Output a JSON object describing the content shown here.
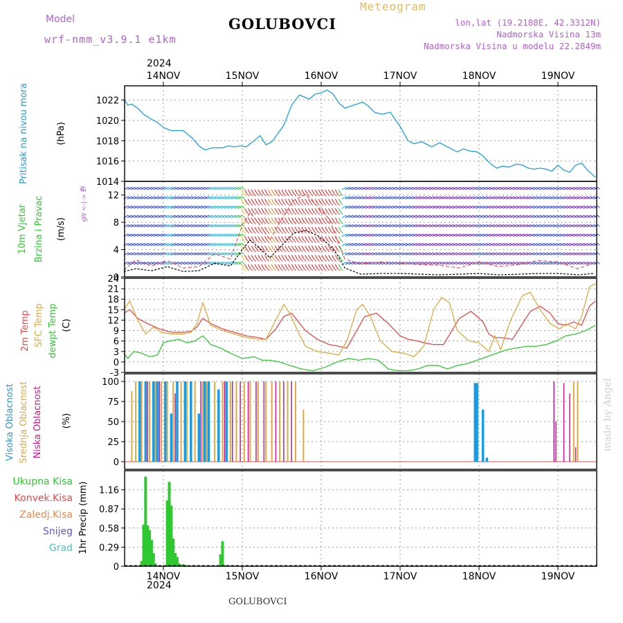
{
  "header": {
    "model_label": "Model",
    "model_name": "wrf-nmm_v3.9.1 e1km",
    "station": "GOLUBOVCI",
    "meteogram": "Meteogram",
    "lonlat": "lon,lat (19.2188E, 42.3312N)",
    "altitude": "Nadmorska Visina 13m",
    "model_altitude": "Nadmorska Visina u modelu 22.2849m",
    "year": "2024",
    "footer_station": "GOLUBOVCI",
    "credit": "made by Angel"
  },
  "colors": {
    "pressure": "#1aa0e0",
    "temp2m": "#e84848",
    "sfc_temp": "#e0a840",
    "dewpoint": "#30c830",
    "high_cloud": "#1a9ae0",
    "mid_cloud": "#e0a840",
    "low_cloud": "#c81890",
    "precip": "#30c830",
    "label_purple": "#b060d0",
    "label_gold": "#e8b860"
  },
  "chart_data": [
    {
      "panel": "pressure",
      "type": "line",
      "x_tick_labels": [
        "14NOV",
        "15NOV",
        "16NOV",
        "17NOV",
        "18NOV",
        "19NOV"
      ],
      "ylabel_lines": [
        "Pritisak na nivou mora",
        "(hPa)"
      ],
      "ylim": [
        1014,
        1023.4
      ],
      "y_ticks": [
        "1022",
        "1020",
        "1018",
        "1016",
        "1014"
      ],
      "series": [
        {
          "x": [
            0,
            0.1,
            0.2,
            0.35,
            0.5,
            0.7,
            0.85,
            1.0,
            1.2,
            1.5,
            1.75,
            1.9,
            2.05,
            2.25,
            2.5,
            2.65,
            2.8,
            2.95,
            3.1,
            3.3,
            3.45,
            3.6,
            3.75,
            4.05,
            4.25,
            4.45,
            4.7,
            4.85,
            5.0,
            5.15,
            5.3,
            5.45,
            5.6,
            5.75,
            5.9,
            6.05,
            6.2,
            6.35,
            6.55,
            6.75,
            7.0,
            7.2,
            7.35,
            7.55,
            7.8,
            8.0,
            8.2,
            8.45,
            8.6,
            8.75,
            8.95,
            9.1,
            9.3,
            9.45,
            9.6,
            9.75,
            9.95,
            10.1,
            10.25,
            10.4,
            10.55,
            10.7,
            10.85,
            11.0,
            11.15,
            11.3,
            11.45,
            11.6,
            11.75,
            11.95
          ],
          "values": [
            1022.1,
            1021.5,
            1021.6,
            1021.2,
            1020.6,
            1020.1,
            1019.8,
            1019.3,
            1019.0,
            1019.0,
            1018.2,
            1017.5,
            1017.1,
            1017.3,
            1017.3,
            1017.5,
            1017.4,
            1017.5,
            1017.4,
            1018.0,
            1018.5,
            1017.6,
            1017.9,
            1019.5,
            1021.5,
            1022.5,
            1022.1,
            1022.6,
            1022.7,
            1023.0,
            1022.6,
            1021.7,
            1021.2,
            1021.4,
            1021.6,
            1021.8,
            1021.4,
            1020.8,
            1020.6,
            1020.8,
            1019.4,
            1018.0,
            1017.7,
            1017.9,
            1017.4,
            1017.8,
            1017.4,
            1016.9,
            1017.2,
            1017.0,
            1016.9,
            1016.5,
            1015.7,
            1015.3,
            1015.5,
            1015.4,
            1015.7,
            1015.6,
            1015.3,
            1015.2,
            1015.3,
            1015.2,
            1015.0,
            1015.6,
            1015.1,
            1014.9,
            1015.6,
            1015.8,
            1015.1,
            1014.4
          ]
        }
      ]
    },
    {
      "panel": "wind",
      "type": "line",
      "ylabel_lines": [
        "10m Vjetar",
        "Brzina i Pravac",
        "(m/s)"
      ],
      "compass_lines": [
        "N",
        "W <-|-> E",
        "S"
      ],
      "ylim": [
        0,
        14
      ],
      "y_ticks": [
        "0",
        "4",
        "8",
        "12"
      ],
      "series": [
        {
          "name": "speed",
          "x": [
            0,
            0.3,
            0.7,
            1.1,
            1.5,
            1.9,
            2.3,
            2.7,
            3.0,
            3.2,
            3.4,
            3.7,
            4.0,
            4.3,
            4.6,
            4.9,
            5.2,
            5.4,
            5.6,
            6.0,
            6.5,
            7.0,
            7.5,
            8.0,
            8.5,
            9.0,
            9.5,
            10.0,
            10.5,
            11.0,
            11.5,
            11.9
          ],
          "values": [
            0.8,
            1.2,
            0.9,
            1.5,
            0.8,
            0.9,
            2.0,
            1.6,
            4.0,
            5.4,
            4.4,
            2.8,
            4.6,
            6.4,
            6.8,
            6.1,
            4.7,
            3.3,
            1.3,
            0.4,
            0.5,
            0.5,
            0.4,
            0.3,
            0.4,
            0.5,
            0.3,
            0.4,
            0.5,
            0.5,
            0.3,
            0.5
          ]
        },
        {
          "name": "gust",
          "x": [
            0,
            0.3,
            0.7,
            1.1,
            1.5,
            1.9,
            2.3,
            2.7,
            3.0,
            3.2,
            3.4,
            3.7,
            4.0,
            4.3,
            4.6,
            4.9,
            5.2,
            5.4,
            5.6,
            6.0,
            6.5,
            7.0,
            7.5,
            8.0,
            8.5,
            9.0,
            9.5,
            10.0,
            10.5,
            11.0,
            11.5,
            11.9
          ],
          "values": [
            1.0,
            2.5,
            1.6,
            2.4,
            1.3,
            1.5,
            3.4,
            2.6,
            7.6,
            9.4,
            8.0,
            5.4,
            8.5,
            11.2,
            12.1,
            10.4,
            8.5,
            5.5,
            2.6,
            1.9,
            2.2,
            2.0,
            1.8,
            1.7,
            1.3,
            2.2,
            1.5,
            1.8,
            2.4,
            2.2,
            1.2,
            2.0
          ]
        }
      ]
    },
    {
      "panel": "temperature",
      "type": "line",
      "ylabel_lines": [
        "2m Temp",
        "SFC Temp",
        "dewpt Temp",
        "(C)"
      ],
      "ylim": [
        -3,
        24
      ],
      "y_ticks": [
        "-3",
        "0",
        "3",
        "6",
        "9",
        "12",
        "15",
        "18",
        "21",
        "24"
      ],
      "series": [
        {
          "name": "2m Temp",
          "x": [
            0,
            0.15,
            0.35,
            0.6,
            0.9,
            1.2,
            1.5,
            1.7,
            1.85,
            2.0,
            2.2,
            2.5,
            2.8,
            3.1,
            3.4,
            3.6,
            3.85,
            4.05,
            4.25,
            4.6,
            4.9,
            5.2,
            5.45,
            5.65,
            5.9,
            6.1,
            6.4,
            6.7,
            7.0,
            7.2,
            7.45,
            7.6,
            7.85,
            8.1,
            8.5,
            8.8,
            9.1,
            9.25,
            9.4,
            9.55,
            9.85,
            10.1,
            10.3,
            10.55,
            10.8,
            11.0,
            11.2,
            11.4,
            11.6,
            11.8,
            11.95
          ],
          "values": [
            14.0,
            15.0,
            12.5,
            11.0,
            9.5,
            8.5,
            8.5,
            8.8,
            10.0,
            12.5,
            11.0,
            9.5,
            8.5,
            7.5,
            7.0,
            6.5,
            9.5,
            13.0,
            14.0,
            9.0,
            6.5,
            5.0,
            4.5,
            4.0,
            9.0,
            13.0,
            14.0,
            11.0,
            7.5,
            6.5,
            6.0,
            5.5,
            5.0,
            5.0,
            12.5,
            14.5,
            11.5,
            8.0,
            7.0,
            7.0,
            6.5,
            11.0,
            14.5,
            16.0,
            14.0,
            11.0,
            10.5,
            11.5,
            10.5,
            16.0,
            17.5
          ]
        },
        {
          "name": "SFC Temp",
          "x": [
            0,
            0.15,
            0.35,
            0.55,
            0.75,
            0.95,
            1.2,
            1.5,
            1.7,
            1.85,
            2.0,
            2.2,
            2.5,
            2.8,
            3.1,
            3.4,
            3.6,
            3.85,
            4.05,
            4.2,
            4.4,
            4.6,
            4.9,
            5.2,
            5.45,
            5.65,
            5.9,
            6.05,
            6.25,
            6.5,
            6.8,
            7.1,
            7.35,
            7.6,
            7.85,
            8.05,
            8.25,
            8.45,
            8.75,
            9.0,
            9.25,
            9.4,
            9.55,
            9.8,
            10.1,
            10.3,
            10.55,
            10.8,
            11.05,
            11.2,
            11.45,
            11.6,
            11.8,
            11.95
          ],
          "values": [
            15.0,
            17.5,
            12.0,
            8.0,
            10.0,
            8.5,
            8.0,
            8.0,
            8.5,
            11.0,
            17.0,
            10.5,
            9.0,
            8.0,
            7.0,
            6.5,
            6.5,
            12.0,
            16.5,
            14.0,
            9.0,
            4.5,
            3.0,
            2.5,
            2.0,
            6.0,
            15.0,
            16.5,
            13.0,
            6.0,
            3.0,
            2.5,
            1.5,
            4.5,
            15.0,
            18.5,
            17.0,
            9.0,
            6.0,
            5.5,
            3.0,
            7.5,
            3.5,
            12.0,
            19.0,
            20.0,
            15.0,
            11.0,
            9.5,
            11.0,
            9.5,
            13.0,
            21.5,
            22.5
          ]
        },
        {
          "name": "dewpt Temp",
          "x": [
            0,
            0.1,
            0.25,
            0.45,
            0.65,
            0.85,
            1.0,
            1.15,
            1.4,
            1.6,
            1.8,
            2.0,
            2.2,
            2.45,
            2.7,
            3.0,
            3.3,
            3.5,
            3.7,
            3.95,
            4.2,
            4.5,
            4.8,
            5.1,
            5.4,
            5.7,
            5.95,
            6.2,
            6.45,
            6.7,
            6.95,
            7.2,
            7.45,
            7.7,
            7.95,
            8.2,
            8.45,
            8.7,
            8.95,
            9.2,
            9.45,
            9.7,
            9.95,
            10.2,
            10.45,
            10.7,
            10.95,
            11.2,
            11.45,
            11.7,
            11.95
          ],
          "values": [
            2.5,
            1.0,
            3.0,
            2.5,
            1.5,
            2.0,
            5.5,
            6.0,
            6.5,
            5.5,
            6.0,
            7.5,
            5.0,
            4.0,
            2.5,
            1.0,
            1.5,
            0.5,
            0.5,
            0.0,
            -1.0,
            -2.0,
            -2.5,
            -1.5,
            0.0,
            1.0,
            0.5,
            1.0,
            0.5,
            -2.0,
            -2.5,
            -2.5,
            -2.0,
            -1.0,
            -1.0,
            -2.0,
            -1.0,
            -0.5,
            0.5,
            1.5,
            2.5,
            3.5,
            4.0,
            4.5,
            4.5,
            5.0,
            6.0,
            7.5,
            8.0,
            9.0,
            10.5
          ]
        }
      ]
    },
    {
      "panel": "cloud_cover",
      "type": "bar",
      "ylabel_lines": [
        "Visoka Oblacnost",
        "Srednja Oblacnost",
        "Niska Oblacnost",
        "(%)"
      ],
      "ylim": [
        0,
        100
      ],
      "y_ticks": [
        "0",
        "25",
        "50",
        "75",
        "100"
      ],
      "series": [
        {
          "name": "Visoka Oblacnost",
          "x": [
            0.4,
            0.55,
            0.75,
            0.85,
            1.05,
            1.2,
            1.35,
            1.55,
            1.7,
            1.9,
            2.05,
            2.15,
            2.4,
            2.6,
            8.9,
            8.95,
            9.1,
            9.2
          ],
          "values": [
            100,
            100,
            100,
            100,
            100,
            60,
            100,
            100,
            100,
            60,
            100,
            100,
            90,
            100,
            98,
            98,
            65,
            5
          ]
        },
        {
          "name": "Srednja Oblacnost",
          "x": [
            0.2,
            0.3,
            0.45,
            0.65,
            0.8,
            0.95,
            1.1,
            1.25,
            1.45,
            1.6,
            1.8,
            2.0,
            2.1,
            2.3,
            2.5,
            2.7,
            2.85,
            3.05,
            3.2,
            3.4,
            3.6,
            3.75,
            3.95,
            4.15,
            4.35,
            4.55,
            11.4,
            11.5
          ],
          "values": [
            88,
            100,
            100,
            100,
            100,
            100,
            100,
            100,
            100,
            100,
            100,
            100,
            100,
            100,
            100,
            100,
            100,
            100,
            100,
            100,
            100,
            100,
            100,
            100,
            100,
            65,
            100,
            100
          ]
        },
        {
          "name": "Niska Oblacnost",
          "x": [
            0.6,
            0.9,
            1.3,
            1.95,
            2.55,
            2.75,
            2.95,
            3.15,
            3.35,
            3.55,
            3.85,
            4.05,
            4.25,
            10.9,
            10.95,
            11.15,
            11.3,
            11.45
          ],
          "values": [
            100,
            100,
            85,
            100,
            100,
            100,
            100,
            100,
            100,
            100,
            100,
            100,
            100,
            100,
            50,
            98,
            85,
            18
          ]
        }
      ]
    },
    {
      "panel": "precipitation",
      "type": "bar",
      "ylabel_lines": [
        "1hr Precip (mm)"
      ],
      "legend": [
        "Ukupna Kisa",
        "Konvek.Kisa",
        "Zaledj.Kisa",
        "Snijeg",
        "Grad"
      ],
      "legend_colors": [
        "#30c830",
        "#e84848",
        "#f08848",
        "#5858e0",
        "#40c8c8"
      ],
      "ylim": [
        0,
        1.45
      ],
      "y_ticks": [
        "0",
        "0.29",
        "0.58",
        "0.87",
        "1.16"
      ],
      "series": [
        {
          "name": "Ukupna Kisa",
          "x": [
            0.45,
            0.5,
            0.55,
            0.6,
            0.65,
            0.7,
            0.75,
            0.8,
            1.1,
            1.15,
            1.2,
            1.25,
            1.3,
            1.35,
            1.4,
            1.45,
            1.5,
            1.55,
            2.45,
            2.5,
            2.55
          ],
          "values": [
            0.08,
            0.63,
            1.36,
            0.62,
            0.55,
            0.4,
            0.2,
            0.04,
            1.0,
            1.28,
            0.92,
            0.42,
            0.2,
            0.14,
            0.04,
            0.02,
            0.03,
            0.02,
            0.18,
            0.38,
            0.02
          ]
        }
      ]
    }
  ]
}
